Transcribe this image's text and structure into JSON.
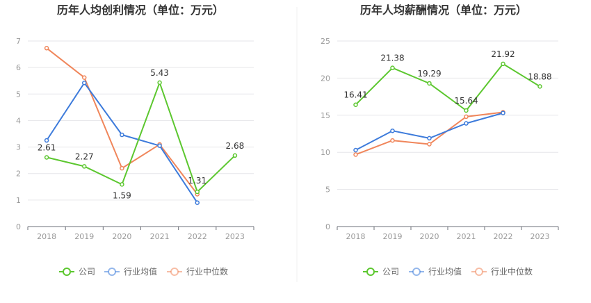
{
  "chart_data": [
    {
      "type": "line",
      "title": "历年人均创利情况（单位：万元）",
      "categories": [
        "2018",
        "2019",
        "2020",
        "2021",
        "2022",
        "2023"
      ],
      "ylim": [
        0,
        7
      ],
      "yticks": [
        "0",
        "1",
        "2",
        "3",
        "4",
        "5",
        "6",
        "7"
      ],
      "grid": true,
      "legend_position": "bottom",
      "series": [
        {
          "name": "公司",
          "color": "#5cc72f",
          "values": [
            2.61,
            2.27,
            1.59,
            5.43,
            1.31,
            2.68
          ],
          "labels": [
            "2.61",
            "2.27",
            "1.59",
            "5.43",
            "1.31",
            "2.68"
          ]
        },
        {
          "name": "行业均值",
          "color": "#3d7bdb",
          "values": [
            3.25,
            5.42,
            3.46,
            3.05,
            0.9,
            null
          ]
        },
        {
          "name": "行业中位数",
          "color": "#f0865b",
          "values": [
            6.73,
            5.62,
            2.2,
            3.1,
            1.22,
            null
          ]
        }
      ]
    },
    {
      "type": "line",
      "title": "历年人均薪酬情况（单位：万元）",
      "categories": [
        "2018",
        "2019",
        "2020",
        "2021",
        "2022",
        "2023"
      ],
      "ylim": [
        0,
        25
      ],
      "yticks": [
        "0",
        "5",
        "10",
        "15",
        "20",
        "25"
      ],
      "grid": true,
      "legend_position": "bottom",
      "series": [
        {
          "name": "公司",
          "color": "#5cc72f",
          "values": [
            16.41,
            21.38,
            19.29,
            15.64,
            21.92,
            18.88
          ],
          "labels": [
            "16.41",
            "21.38",
            "19.29",
            "15.64",
            "21.92",
            "18.88"
          ]
        },
        {
          "name": "行业均值",
          "color": "#3d7bdb",
          "values": [
            10.3,
            12.9,
            11.9,
            13.9,
            15.3,
            null
          ]
        },
        {
          "name": "行业中位数",
          "color": "#f0865b",
          "values": [
            9.7,
            11.6,
            11.1,
            14.8,
            15.4,
            null
          ]
        }
      ]
    }
  ]
}
